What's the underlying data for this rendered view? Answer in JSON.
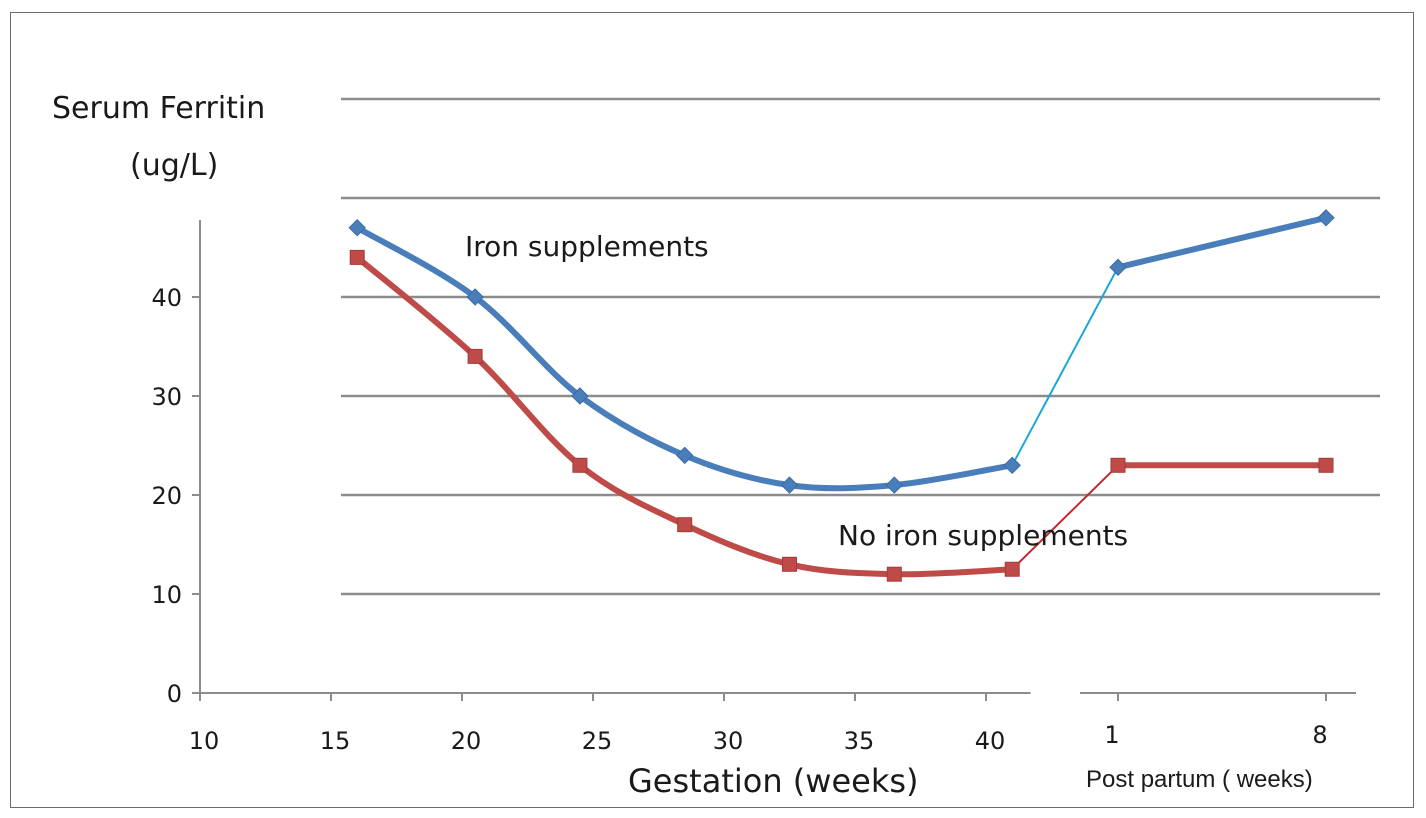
{
  "chart_data": {
    "type": "line",
    "ylabel_line1": "Serum Ferritin",
    "ylabel_line2": "(ug/L)",
    "xlabel": "Gestation  (weeks)",
    "xlabel_postpartum": "Post partum  ( weeks)",
    "ylim": [
      0,
      50
    ],
    "yticks": [
      "0",
      "10",
      "20",
      "30",
      "40"
    ],
    "xlim_gestation": [
      10,
      41.7
    ],
    "xticks_gestation": [
      "10",
      "15",
      "20",
      "25",
      "30",
      "35",
      "40"
    ],
    "xticks_postpartum": [
      "1",
      "8"
    ],
    "grid": true,
    "annotations": {
      "iron": "Iron supplements",
      "no_iron": "No iron supplements"
    },
    "series": [
      {
        "key": "iron",
        "color": "#4a7ebb",
        "connector_color": "#1aa6d6",
        "gestation": [
          [
            16,
            47
          ],
          [
            20.5,
            40
          ],
          [
            24.5,
            30
          ],
          [
            28.5,
            24
          ],
          [
            32.5,
            21
          ],
          [
            36.5,
            21
          ],
          [
            41,
            23
          ]
        ],
        "postpartum": [
          [
            1,
            43
          ],
          [
            8,
            48
          ]
        ]
      },
      {
        "key": "no_iron",
        "color": "#be4b48",
        "connector_color": "#c0282d",
        "gestation": [
          [
            16,
            44
          ],
          [
            20.5,
            34
          ],
          [
            24.5,
            23
          ],
          [
            28.5,
            17
          ],
          [
            32.5,
            13
          ],
          [
            36.5,
            12
          ],
          [
            41,
            12.5
          ]
        ],
        "postpartum": [
          [
            1,
            23
          ],
          [
            8,
            23
          ]
        ]
      }
    ]
  }
}
